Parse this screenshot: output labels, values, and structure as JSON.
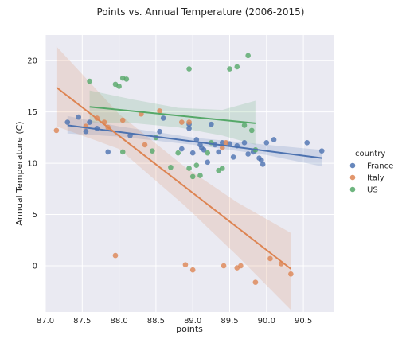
{
  "chart_data": {
    "type": "scatter",
    "title": "Points vs. Annual Temperature (2006-2015)",
    "xlabel": "points",
    "ylabel": "Annual Temperature (C)",
    "xlim": [
      87.0,
      90.92
    ],
    "ylim": [
      -4.5,
      22.5
    ],
    "x_ticks": [
      87.0,
      87.5,
      88.0,
      88.5,
      89.0,
      89.5,
      90.0,
      90.5
    ],
    "x_tick_labels": [
      "87.0",
      "87.5",
      "88.0",
      "88.5",
      "89.0",
      "89.5",
      "90.0",
      "90.5"
    ],
    "y_ticks": [
      0,
      5,
      10,
      15,
      20
    ],
    "y_tick_labels": [
      "0",
      "5",
      "10",
      "15",
      "20"
    ],
    "grid": true,
    "background": "#eaeaf2",
    "legend": {
      "title": "country",
      "position": "right"
    },
    "series": [
      {
        "name": "France",
        "color": "#4c72b0",
        "points": [
          [
            87.3,
            14.0
          ],
          [
            87.45,
            14.5
          ],
          [
            87.55,
            13.1
          ],
          [
            87.6,
            14.0
          ],
          [
            87.7,
            13.4
          ],
          [
            87.85,
            11.1
          ],
          [
            88.15,
            12.7
          ],
          [
            88.55,
            13.1
          ],
          [
            88.6,
            14.4
          ],
          [
            88.85,
            11.4
          ],
          [
            88.95,
            13.4
          ],
          [
            88.95,
            13.8
          ],
          [
            89.0,
            11.0
          ],
          [
            89.05,
            12.3
          ],
          [
            89.1,
            11.8
          ],
          [
            89.12,
            11.5
          ],
          [
            89.15,
            11.3
          ],
          [
            89.2,
            10.1
          ],
          [
            89.25,
            13.8
          ],
          [
            89.3,
            11.8
          ],
          [
            89.35,
            11.1
          ],
          [
            89.4,
            12.0
          ],
          [
            89.5,
            11.9
          ],
          [
            89.55,
            10.6
          ],
          [
            89.6,
            11.7
          ],
          [
            89.7,
            12.0
          ],
          [
            89.75,
            10.9
          ],
          [
            89.82,
            11.1
          ],
          [
            89.9,
            10.5
          ],
          [
            89.93,
            10.3
          ],
          [
            89.95,
            9.9
          ],
          [
            90.0,
            12.0
          ],
          [
            90.1,
            12.3
          ],
          [
            90.55,
            12.0
          ],
          [
            90.75,
            11.2
          ]
        ],
        "fit": [
          [
            87.3,
            13.7
          ],
          [
            90.75,
            10.5
          ]
        ],
        "ci_band": [
          [
            87.3,
            12.9,
            14.6
          ],
          [
            88.0,
            12.6,
            13.6
          ],
          [
            89.0,
            11.8,
            12.5
          ],
          [
            90.0,
            10.8,
            11.8
          ],
          [
            90.75,
            9.7,
            11.3
          ]
        ]
      },
      {
        "name": "Italy",
        "color": "#dd8452",
        "points": [
          [
            87.15,
            13.2
          ],
          [
            87.55,
            13.6
          ],
          [
            87.7,
            14.4
          ],
          [
            87.8,
            14.0
          ],
          [
            87.85,
            13.5
          ],
          [
            87.95,
            1.0
          ],
          [
            88.05,
            14.2
          ],
          [
            88.3,
            14.8
          ],
          [
            88.35,
            11.8
          ],
          [
            88.55,
            15.1
          ],
          [
            88.85,
            14.0
          ],
          [
            88.9,
            0.1
          ],
          [
            88.95,
            14.0
          ],
          [
            89.0,
            -0.4
          ],
          [
            89.4,
            11.5
          ],
          [
            89.42,
            0.0
          ],
          [
            89.45,
            12.0
          ],
          [
            89.6,
            -0.2
          ],
          [
            89.65,
            0.0
          ],
          [
            89.85,
            -1.6
          ],
          [
            90.05,
            0.7
          ],
          [
            90.2,
            0.2
          ],
          [
            90.33,
            -0.8
          ]
        ],
        "fit": [
          [
            87.15,
            17.4
          ],
          [
            90.33,
            -0.3
          ]
        ],
        "ci_band": [
          [
            87.15,
            13.6,
            21.4
          ],
          [
            88.0,
            11.4,
            14.8
          ],
          [
            88.9,
            5.8,
            9.6
          ],
          [
            89.6,
            1.0,
            6.2
          ],
          [
            90.33,
            -4.3,
            3.2
          ]
        ]
      },
      {
        "name": "US",
        "color": "#55a868",
        "points": [
          [
            87.6,
            18.0
          ],
          [
            87.95,
            17.7
          ],
          [
            88.0,
            17.5
          ],
          [
            88.05,
            18.3
          ],
          [
            88.1,
            18.2
          ],
          [
            88.05,
            11.1
          ],
          [
            88.45,
            11.2
          ],
          [
            88.5,
            12.5
          ],
          [
            88.7,
            9.6
          ],
          [
            88.8,
            11.0
          ],
          [
            88.95,
            19.2
          ],
          [
            88.95,
            9.5
          ],
          [
            89.0,
            8.7
          ],
          [
            89.05,
            9.8
          ],
          [
            89.1,
            8.8
          ],
          [
            89.2,
            11.0
          ],
          [
            89.25,
            12.0
          ],
          [
            89.35,
            9.3
          ],
          [
            89.4,
            9.5
          ],
          [
            89.5,
            19.2
          ],
          [
            89.6,
            19.4
          ],
          [
            89.7,
            13.7
          ],
          [
            89.75,
            20.5
          ],
          [
            89.8,
            13.2
          ],
          [
            89.85,
            11.3
          ]
        ],
        "fit": [
          [
            87.6,
            15.5
          ],
          [
            89.85,
            13.9
          ]
        ],
        "ci_band": [
          [
            87.6,
            14.0,
            17.1
          ],
          [
            88.2,
            13.9,
            16.2
          ],
          [
            88.8,
            13.5,
            15.4
          ],
          [
            89.4,
            12.7,
            15.2
          ],
          [
            89.85,
            11.8,
            16.1
          ]
        ]
      }
    ]
  }
}
